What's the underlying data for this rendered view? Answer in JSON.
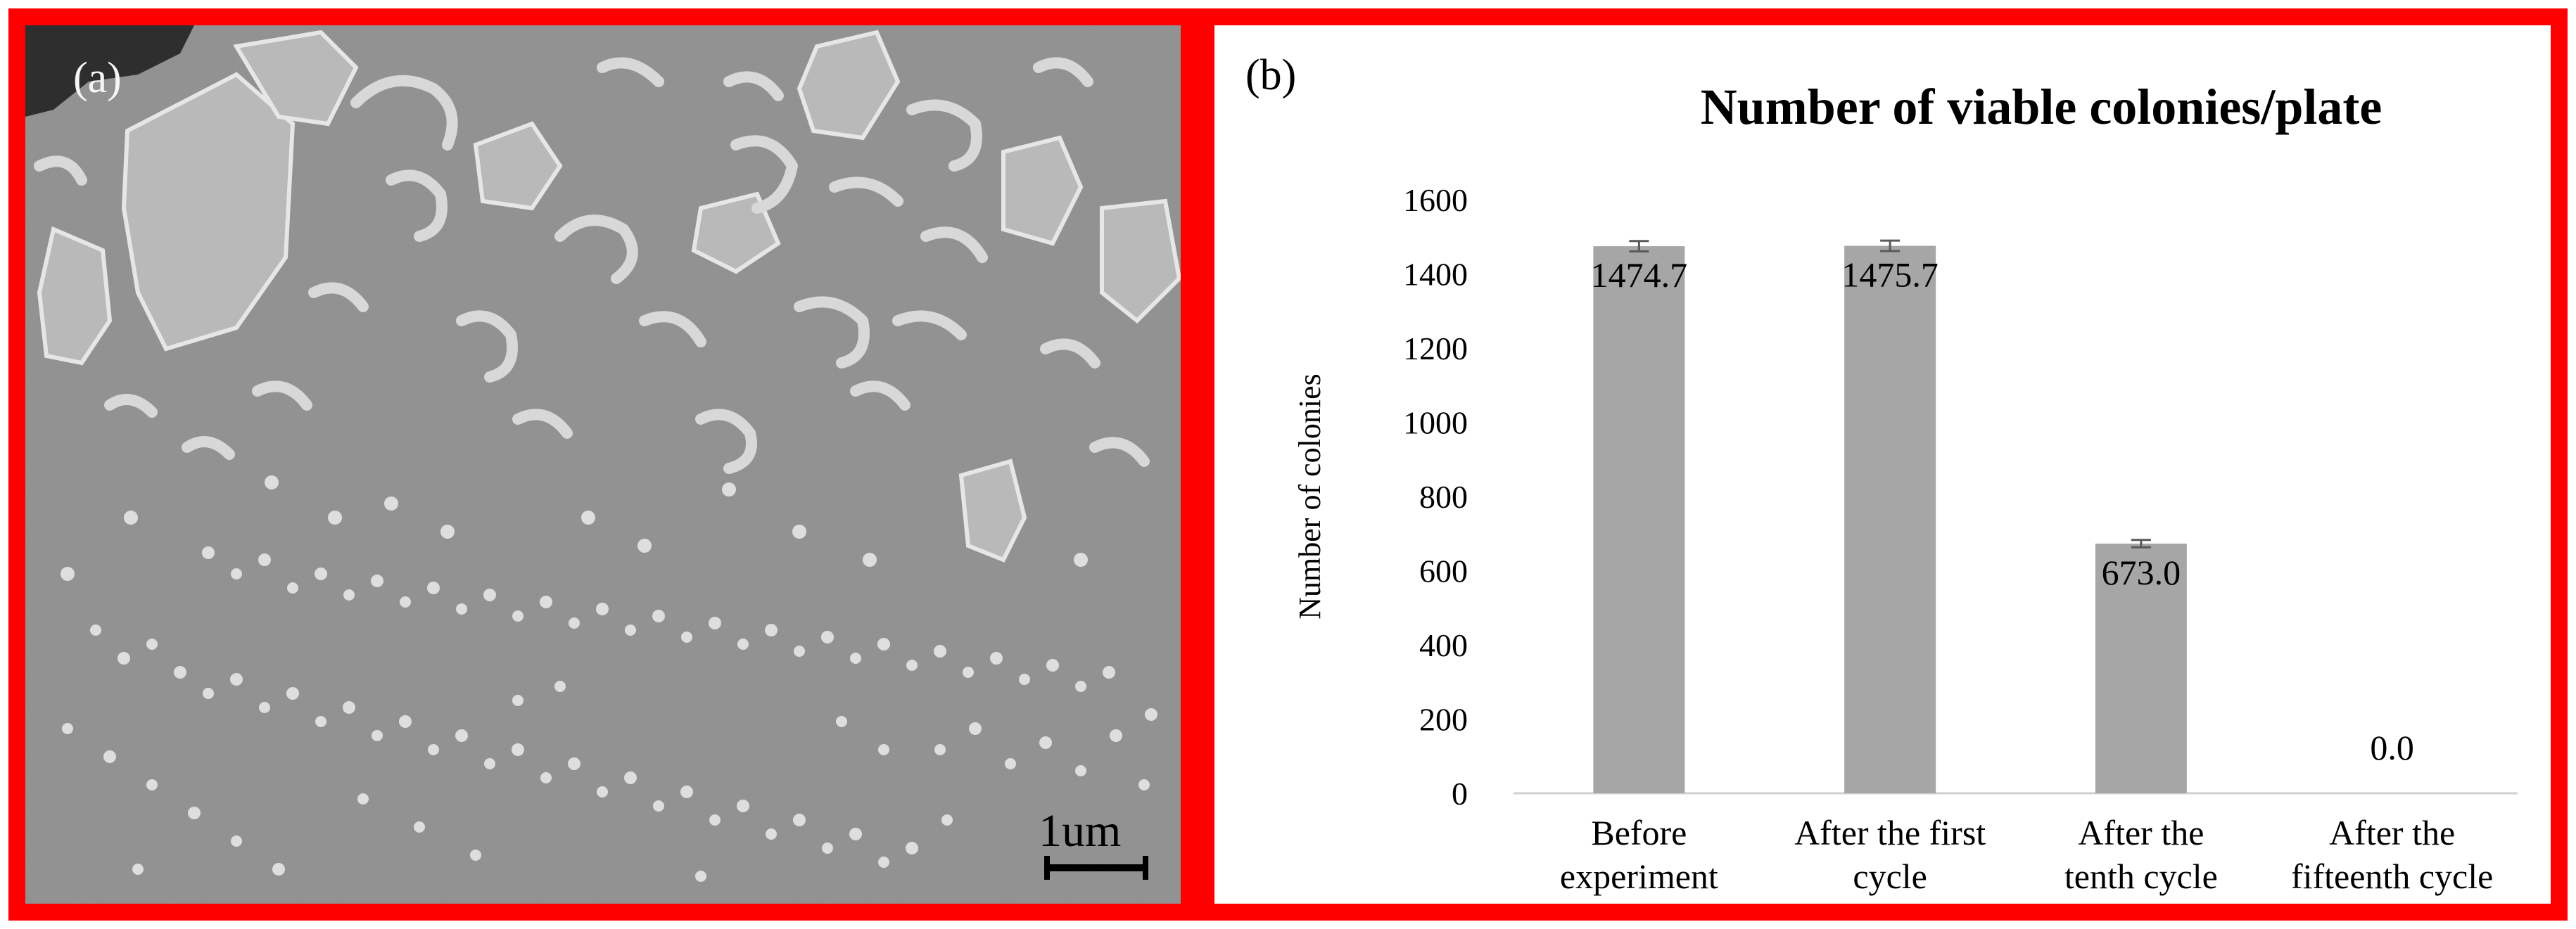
{
  "panel_a": {
    "label": "(a)",
    "scale_label": "1um"
  },
  "panel_b": {
    "label": "(b)"
  },
  "chart_data": {
    "type": "bar",
    "title": "Number of viable colonies/plate",
    "ylabel": "Number of colonies",
    "xlabel": "",
    "categories": [
      [
        "Before",
        "experiment"
      ],
      [
        "After the first",
        "cycle"
      ],
      [
        "After the",
        "tenth cycle"
      ],
      [
        "After the",
        "fifteenth cycle"
      ]
    ],
    "values": [
      1474.7,
      1475.7,
      673.0,
      0.0
    ],
    "data_labels": [
      "1474.7",
      "1475.7",
      "673.0",
      "0.0"
    ],
    "errors": [
      14,
      14,
      10,
      0
    ],
    "ylim": [
      0,
      1600
    ],
    "yticks": [
      0,
      200,
      400,
      600,
      800,
      1000,
      1200,
      1400,
      1600
    ],
    "bar_color": "#a6a6a6",
    "grid": false,
    "legend": "none"
  }
}
